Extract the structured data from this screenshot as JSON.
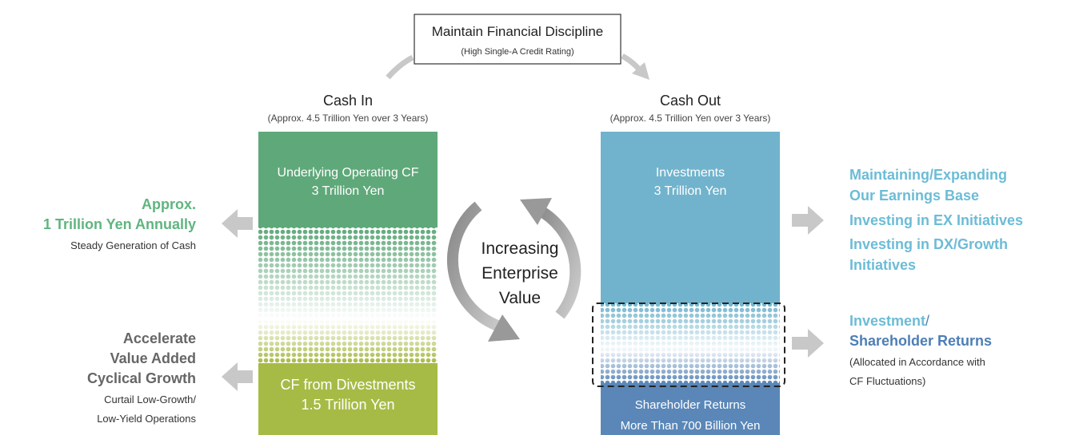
{
  "top": {
    "title": "Maintain Financial Discipline",
    "subtitle": "(High Single-A Credit Rating)"
  },
  "cash_in": {
    "title": "Cash In",
    "subtitle": "(Approx. 4.5 Trillion Yen over 3 Years)",
    "upper": [
      "Underlying Operating CF",
      "3 Trillion Yen"
    ],
    "lower": [
      "CF from Divestments",
      "1.5 Trillion Yen"
    ]
  },
  "cash_out": {
    "title": "Cash Out",
    "subtitle": "(Approx. 4.5 Trillion Yen over 3 Years)",
    "upper": [
      "Investments",
      "3 Trillion Yen"
    ],
    "lower": [
      "Shareholder Returns",
      "More Than 700 Billion Yen"
    ]
  },
  "center": [
    "Increasing",
    "Enterprise",
    "Value"
  ],
  "left_notes": {
    "top": {
      "heading": [
        "Approx.",
        "1 Trillion Yen Annually"
      ],
      "detail": [
        "Steady Generation of Cash"
      ]
    },
    "bottom": {
      "heading": [
        "Accelerate",
        "Value Added",
        "Cyclical Growth"
      ],
      "detail": [
        "Curtail Low-Growth/",
        "Low-Yield Operations"
      ]
    }
  },
  "right_notes": {
    "top": [
      "Maintaining/Expanding",
      "Our Earnings Base",
      "Investing in EX Initiatives",
      "Investing in DX/Growth",
      "Initiatives"
    ],
    "bottom": {
      "heading_a": "Investment",
      "slash": "/",
      "heading_b": "Shareholder Returns",
      "detail": [
        "(Allocated in Accordance with",
        "CF Fluctuations)"
      ]
    }
  }
}
